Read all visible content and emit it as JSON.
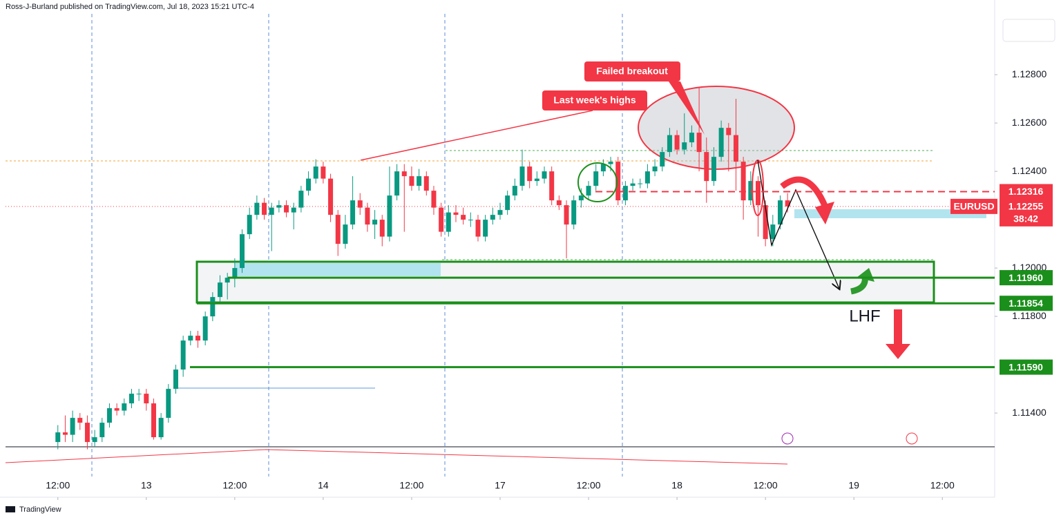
{
  "chart_data": {
    "type": "candlestick",
    "title": "Ross-J-Burland published on TradingView.com, Jul 18, 2023 15:21 UTC-4",
    "source": "TradingView",
    "symbol": "EURUSD",
    "countdown": "38:42",
    "up_color": "#089981",
    "down_color": "#f23645",
    "x": [
      -12,
      -11,
      -10,
      -9,
      -8,
      -7,
      -6,
      -5,
      -4,
      -3,
      -2,
      -1,
      0,
      1,
      2,
      3,
      4,
      5,
      6,
      7,
      8,
      9,
      10,
      11,
      12,
      13,
      14,
      15,
      16,
      17,
      18,
      19,
      20,
      21,
      22,
      23,
      24,
      25,
      26,
      27,
      28,
      29,
      30,
      31,
      32,
      33,
      34,
      35,
      36,
      37,
      38,
      39,
      40,
      41,
      42,
      43,
      44,
      45,
      46,
      47,
      48,
      49,
      50,
      51,
      52,
      53,
      54,
      55,
      56,
      57,
      58,
      59,
      60,
      61,
      62,
      63,
      64,
      65,
      66,
      67,
      68,
      69,
      70,
      71,
      72,
      73,
      74,
      75,
      76,
      77,
      78,
      79,
      80,
      81,
      82,
      83,
      84,
      85,
      86,
      87
    ],
    "open": [
      1.1128,
      1.1132,
      1.1131,
      1.1138,
      1.1136,
      1.1128,
      1.113,
      1.1136,
      1.1142,
      1.1141,
      1.1144,
      1.1148,
      1.1148,
      1.1144,
      1.113,
      1.1138,
      1.115,
      1.1158,
      1.117,
      1.1172,
      1.117,
      1.118,
      1.1188,
      1.1194,
      1.1196,
      1.12,
      1.1214,
      1.1222,
      1.1227,
      1.1222,
      1.1225,
      1.1226,
      1.1223,
      1.1225,
      1.1232,
      1.1237,
      1.1242,
      1.1237,
      1.1222,
      1.121,
      1.1218,
      1.1228,
      1.1225,
      1.1218,
      1.122,
      1.1213,
      1.123,
      1.124,
      1.1238,
      1.1234,
      1.1238,
      1.1232,
      1.1225,
      1.1215,
      1.1223,
      1.1222,
      1.122,
      1.122,
      1.1213,
      1.122,
      1.1222,
      1.1224,
      1.123,
      1.1234,
      1.1242,
      1.1236,
      1.1237,
      1.124,
      1.1228,
      1.1226,
      1.1218,
      1.1228,
      1.123,
      1.1234,
      1.124,
      1.1243,
      1.1244,
      1.1228,
      1.1234,
      1.1235,
      1.1235,
      1.124,
      1.1242,
      1.1248,
      1.1255,
      1.1249,
      1.1252,
      1.1256,
      1.1248,
      1.1236,
      1.1246,
      1.1258,
      1.1255,
      1.1244,
      1.1228,
      1.1236,
      1.1226,
      1.1212,
      1.1218,
      1.1228
    ],
    "high": [
      1.1135,
      1.1139,
      1.1141,
      1.114,
      1.1139,
      1.1133,
      1.1138,
      1.1144,
      1.1144,
      1.1146,
      1.115,
      1.115,
      1.115,
      1.1146,
      1.114,
      1.1152,
      1.116,
      1.1172,
      1.1174,
      1.1174,
      1.1182,
      1.119,
      1.1197,
      1.1198,
      1.1204,
      1.1216,
      1.1225,
      1.123,
      1.1229,
      1.1227,
      1.1228,
      1.1228,
      1.1227,
      1.1234,
      1.124,
      1.1245,
      1.1244,
      1.1239,
      1.1224,
      1.1222,
      1.1238,
      1.1231,
      1.1227,
      1.1224,
      1.1222,
      1.1242,
      1.1243,
      1.1243,
      1.1242,
      1.1241,
      1.124,
      1.1234,
      1.1227,
      1.1226,
      1.1226,
      1.1225,
      1.1223,
      1.1222,
      1.1222,
      1.1225,
      1.1227,
      1.1232,
      1.1237,
      1.1249,
      1.1244,
      1.124,
      1.1242,
      1.1242,
      1.123,
      1.1228,
      1.123,
      1.1233,
      1.1236,
      1.1243,
      1.1245,
      1.1246,
      1.1246,
      1.1236,
      1.1237,
      1.1237,
      1.1243,
      1.1245,
      1.125,
      1.1258,
      1.1257,
      1.1264,
      1.1259,
      1.1275,
      1.1254,
      1.125,
      1.1261,
      1.126,
      1.127,
      1.1246,
      1.124,
      1.1238,
      1.1228,
      1.1222,
      1.123,
      1.1231
    ],
    "low": [
      1.1125,
      1.1128,
      1.1128,
      1.1133,
      1.1125,
      1.1126,
      1.1128,
      1.1134,
      1.1139,
      1.1139,
      1.1142,
      1.1145,
      1.1141,
      1.1129,
      1.1129,
      1.1136,
      1.1148,
      1.1155,
      1.1168,
      1.1167,
      1.1168,
      1.1178,
      1.1186,
      1.1187,
      1.1192,
      1.1198,
      1.1212,
      1.122,
      1.122,
      1.1207,
      1.1223,
      1.1221,
      1.1216,
      1.1223,
      1.123,
      1.1235,
      1.1235,
      1.1219,
      1.1205,
      1.1208,
      1.1216,
      1.1222,
      1.1215,
      1.1212,
      1.1209,
      1.1211,
      1.1228,
      1.1215,
      1.1232,
      1.1232,
      1.123,
      1.1222,
      1.1213,
      1.1213,
      1.1219,
      1.1218,
      1.1217,
      1.1211,
      1.1211,
      1.1218,
      1.122,
      1.1222,
      1.1228,
      1.1232,
      1.1233,
      1.1234,
      1.1235,
      1.1226,
      1.1224,
      1.1204,
      1.1216,
      1.1225,
      1.1228,
      1.1232,
      1.1238,
      1.124,
      1.1226,
      1.1226,
      1.1232,
      1.1233,
      1.1233,
      1.1238,
      1.124,
      1.1246,
      1.1247,
      1.1247,
      1.125,
      1.124,
      1.1227,
      1.1234,
      1.1244,
      1.124,
      1.1232,
      1.122,
      1.1226,
      1.1213,
      1.1209,
      1.1209,
      1.1216,
      1.1223
    ],
    "close": [
      1.1132,
      1.1131,
      1.1138,
      1.1136,
      1.1128,
      1.113,
      1.1136,
      1.1142,
      1.1141,
      1.1144,
      1.1148,
      1.1148,
      1.1144,
      1.113,
      1.1138,
      1.115,
      1.1158,
      1.117,
      1.1172,
      1.117,
      1.118,
      1.1188,
      1.1194,
      1.1196,
      1.12,
      1.1214,
      1.1222,
      1.1227,
      1.1222,
      1.1225,
      1.1226,
      1.1223,
      1.1225,
      1.1232,
      1.1237,
      1.1242,
      1.1237,
      1.1222,
      1.121,
      1.1218,
      1.1228,
      1.1225,
      1.1218,
      1.122,
      1.1213,
      1.123,
      1.124,
      1.1238,
      1.1234,
      1.1238,
      1.1232,
      1.1225,
      1.1215,
      1.1223,
      1.1222,
      1.122,
      1.122,
      1.1213,
      1.122,
      1.1222,
      1.1224,
      1.123,
      1.1234,
      1.1242,
      1.1236,
      1.1237,
      1.124,
      1.1228,
      1.1226,
      1.1218,
      1.1228,
      1.123,
      1.1234,
      1.124,
      1.1243,
      1.1244,
      1.1228,
      1.1234,
      1.1235,
      1.1235,
      1.124,
      1.1242,
      1.1248,
      1.1255,
      1.1249,
      1.1252,
      1.1256,
      1.1248,
      1.1236,
      1.1246,
      1.1258,
      1.1255,
      1.1244,
      1.1228,
      1.1236,
      1.1226,
      1.1212,
      1.1218,
      1.1228,
      1.12255
    ],
    "last_price": {
      "value": 1.12255,
      "label": "1.12255"
    },
    "levels": [
      {
        "value": 1.12316,
        "label": "1.12316",
        "color": "#f23645",
        "style": "dashed"
      },
      {
        "value": 1.1196,
        "label": "1.11960",
        "color": "#1b8f1b",
        "style": "solid"
      },
      {
        "value": 1.11854,
        "label": "1.11854",
        "color": "#1b8f1b",
        "style": "solid"
      },
      {
        "value": 1.1159,
        "label": "1.11590",
        "color": "#1b8f1b",
        "style": "solid"
      }
    ],
    "annotations": [
      "Last week's highs",
      "Failed breakout",
      "LHF"
    ],
    "xlim": [
      -19.1,
      115.1
    ],
    "ylim": [
      1.11266,
      1.13109
    ],
    "xticks": [
      {
        "value": -12,
        "label": "12:00"
      },
      {
        "value": 0,
        "label": "13"
      },
      {
        "value": 12,
        "label": "12:00"
      },
      {
        "value": 24,
        "label": "14"
      },
      {
        "value": 36,
        "label": "12:00"
      },
      {
        "value": 48,
        "label": "17"
      },
      {
        "value": 60,
        "label": "12:00"
      },
      {
        "value": 72,
        "label": "18"
      },
      {
        "value": 84,
        "label": "12:00"
      },
      {
        "value": 96,
        "label": "19"
      },
      {
        "value": 108,
        "label": "12:00"
      }
    ],
    "yticks": [
      {
        "value": 1.114,
        "label": "1.11400"
      },
      {
        "value": 1.118,
        "label": "1.11800"
      },
      {
        "value": 1.12,
        "label": "1.12000"
      },
      {
        "value": 1.124,
        "label": "1.12400"
      },
      {
        "value": 1.126,
        "label": "1.12600"
      },
      {
        "value": 1.128,
        "label": "1.12800"
      }
    ]
  }
}
